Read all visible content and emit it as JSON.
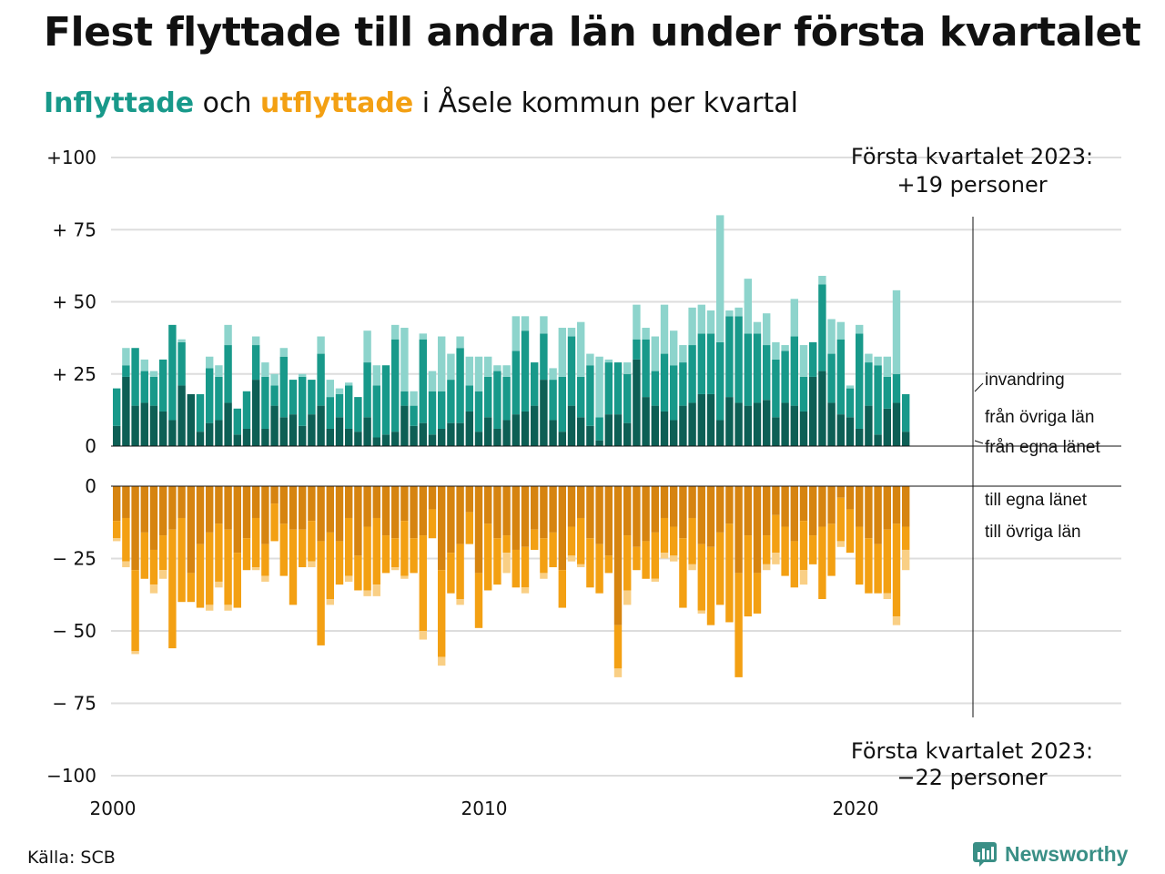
{
  "title": "Flest flyttade till andra län under första kvartalet",
  "subtitle": {
    "in_label": "Inflyttade",
    "mid": " och ",
    "out_label": "utflyttade",
    "rest": " i Åsele kommun per kvartal"
  },
  "annotations": {
    "top_line1": "Första kvartalet 2023:",
    "top_line2": "+19 personer",
    "bottom_line1": "Första kvartalet 2023:",
    "bottom_line2": "−22 personer",
    "invandring": "invandring",
    "fran_ovriga": "från övriga län",
    "fran_egna": "från egna länet",
    "till_egna": "till egna länet",
    "till_ovriga": "till övriga län"
  },
  "source": "Källa: SCB",
  "logo_text": "Newsworthy",
  "colors": {
    "in_own": "#0d5f55",
    "in_other": "#18998a",
    "in_immigration": "#8dd4cc",
    "out_own": "#d68410",
    "out_other": "#f3a013",
    "out_emigration": "#f9cf85",
    "grid": "#dddddd"
  },
  "chart_data": {
    "type": "bar",
    "stacked": true,
    "x_start": "2000 Q1",
    "x_ticks": [
      "2000",
      "2010",
      "2020"
    ],
    "top_axis": {
      "ylim": [
        0,
        100
      ],
      "ticks": [
        "0",
        "+ 25",
        "+ 50",
        "+ 75",
        "+100"
      ]
    },
    "bottom_axis": {
      "ylim": [
        -100,
        0
      ],
      "ticks": [
        "0",
        "− 25",
        "− 50",
        "− 75",
        "−100"
      ]
    },
    "in_own": [
      7,
      24,
      14,
      15,
      14,
      12,
      9,
      21,
      18,
      5,
      8,
      9,
      15,
      4,
      6,
      23,
      6,
      14,
      10,
      11,
      7,
      11,
      14,
      6,
      10,
      6,
      5,
      10,
      3,
      4,
      5,
      14,
      7,
      8,
      4,
      6,
      8,
      8,
      12,
      5,
      10,
      6,
      9,
      11,
      12,
      14,
      23,
      9,
      5,
      14,
      10,
      7,
      2,
      11,
      11,
      8,
      30,
      17,
      14,
      12,
      9,
      14,
      15,
      18,
      18,
      9,
      17,
      15,
      14,
      15,
      16,
      10,
      15,
      14,
      12,
      24,
      26,
      15,
      11,
      10,
      6,
      14,
      4,
      13,
      15,
      5
    ],
    "in_other": [
      13,
      4,
      20,
      11,
      10,
      18,
      33,
      15,
      0,
      13,
      19,
      15,
      20,
      9,
      13,
      12,
      18,
      7,
      21,
      12,
      17,
      12,
      18,
      11,
      8,
      15,
      12,
      19,
      18,
      24,
      32,
      5,
      7,
      29,
      15,
      13,
      15,
      26,
      9,
      14,
      14,
      20,
      15,
      22,
      28,
      15,
      16,
      14,
      19,
      24,
      14,
      21,
      8,
      18,
      18,
      17,
      7,
      20,
      12,
      20,
      19,
      15,
      20,
      21,
      21,
      27,
      28,
      30,
      25,
      24,
      19,
      20,
      18,
      24,
      12,
      12,
      30,
      17,
      26,
      10,
      33,
      15,
      24,
      11,
      10,
      13
    ],
    "in_imm": [
      0,
      6,
      0,
      4,
      2,
      0,
      0,
      1,
      0,
      0,
      4,
      4,
      7,
      0,
      0,
      3,
      5,
      4,
      3,
      0,
      1,
      0,
      6,
      6,
      2,
      1,
      0,
      11,
      7,
      0,
      5,
      22,
      5,
      2,
      7,
      19,
      9,
      4,
      10,
      12,
      7,
      2,
      4,
      12,
      5,
      0,
      6,
      4,
      17,
      3,
      19,
      4,
      21,
      1,
      0,
      4,
      12,
      4,
      12,
      17,
      12,
      6,
      13,
      10,
      8,
      44,
      2,
      3,
      19,
      4,
      11,
      6,
      2,
      13,
      11,
      0,
      3,
      12,
      6,
      1,
      3,
      3,
      3,
      7,
      29,
      0
    ],
    "out_own": [
      12,
      11,
      29,
      16,
      22,
      17,
      15,
      11,
      30,
      20,
      16,
      13,
      15,
      23,
      18,
      11,
      20,
      6,
      13,
      15,
      15,
      12,
      19,
      16,
      19,
      11,
      24,
      14,
      11,
      17,
      18,
      12,
      18,
      17,
      8,
      29,
      23,
      20,
      9,
      30,
      13,
      18,
      17,
      22,
      21,
      15,
      18,
      16,
      29,
      14,
      11,
      18,
      20,
      24,
      48,
      17,
      21,
      19,
      16,
      11,
      14,
      18,
      11,
      20,
      21,
      16,
      13,
      30,
      17,
      30,
      17,
      10,
      14,
      19,
      12,
      17,
      14,
      13,
      4,
      8,
      14,
      18,
      20,
      15,
      13,
      14
    ],
    "out_other": [
      6,
      15,
      28,
      16,
      12,
      12,
      41,
      29,
      10,
      22,
      25,
      20,
      26,
      19,
      11,
      17,
      11,
      13,
      18,
      26,
      13,
      14,
      36,
      23,
      15,
      20,
      12,
      22,
      23,
      13,
      10,
      19,
      12,
      33,
      10,
      30,
      14,
      19,
      11,
      19,
      23,
      16,
      6,
      13,
      14,
      7,
      12,
      12,
      13,
      10,
      16,
      17,
      17,
      6,
      15,
      19,
      8,
      13,
      16,
      12,
      10,
      24,
      16,
      23,
      27,
      25,
      34,
      36,
      28,
      14,
      10,
      13,
      17,
      16,
      17,
      10,
      25,
      18,
      15,
      15,
      20,
      19,
      17,
      22,
      32,
      8
    ],
    "out_emi": [
      1,
      2,
      1,
      0,
      3,
      3,
      0,
      0,
      0,
      0,
      2,
      2,
      2,
      0,
      0,
      1,
      2,
      0,
      0,
      0,
      0,
      2,
      0,
      2,
      0,
      2,
      0,
      2,
      4,
      0,
      1,
      1,
      0,
      3,
      0,
      3,
      0,
      2,
      0,
      0,
      0,
      0,
      7,
      0,
      2,
      0,
      2,
      0,
      0,
      2,
      1,
      0,
      0,
      0,
      3,
      5,
      0,
      0,
      1,
      2,
      2,
      0,
      2,
      1,
      0,
      0,
      0,
      0,
      0,
      0,
      2,
      4,
      0,
      0,
      5,
      0,
      0,
      0,
      2,
      0,
      0,
      0,
      0,
      2,
      3,
      7
    ]
  }
}
